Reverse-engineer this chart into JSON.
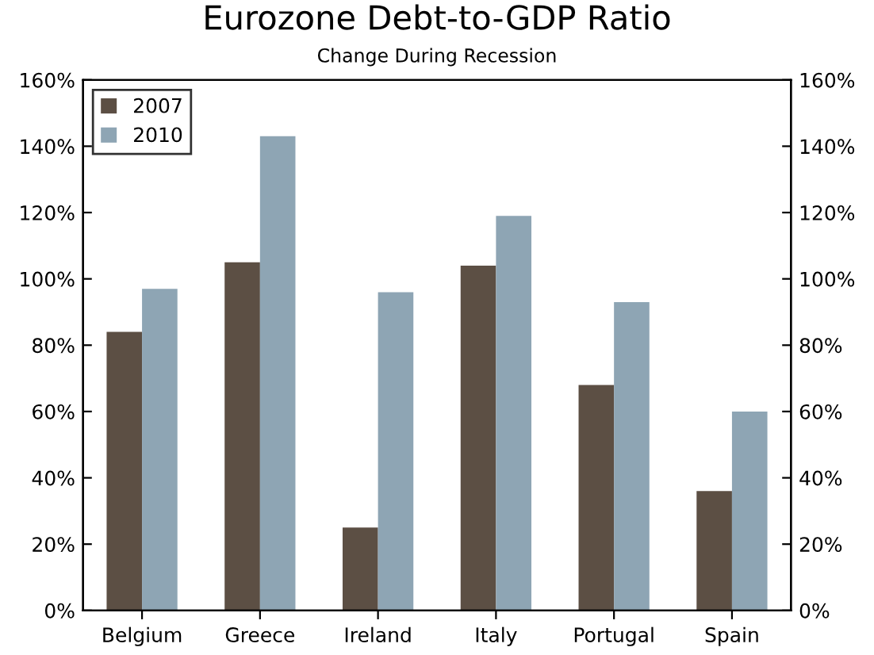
{
  "chart_data": {
    "type": "bar",
    "title": "Eurozone Debt-to-GDP Ratio",
    "subtitle": "Change During Recession",
    "categories": [
      "Belgium",
      "Greece",
      "Ireland",
      "Italy",
      "Portugal",
      "Spain"
    ],
    "series": [
      {
        "name": "2007",
        "color": "#5c4f44",
        "values": [
          84,
          105,
          25,
          104,
          68,
          36
        ]
      },
      {
        "name": "2010",
        "color": "#8ea5b4",
        "values": [
          97,
          143,
          96,
          119,
          93,
          60
        ]
      }
    ],
    "ylim": [
      0,
      160
    ],
    "yticks": [
      {
        "value": 0,
        "label": "0%"
      },
      {
        "value": 20,
        "label": "20%"
      },
      {
        "value": 40,
        "label": "40%"
      },
      {
        "value": 60,
        "label": "60%"
      },
      {
        "value": 80,
        "label": "80%"
      },
      {
        "value": 100,
        "label": "100%"
      },
      {
        "value": 120,
        "label": "120%"
      },
      {
        "value": 140,
        "label": "140%"
      },
      {
        "value": 160,
        "label": "160%"
      }
    ],
    "y2lim": [
      0,
      160
    ],
    "y2ticks": [
      {
        "value": 0,
        "label": "0%"
      },
      {
        "value": 20,
        "label": "20%"
      },
      {
        "value": 40,
        "label": "40%"
      },
      {
        "value": 60,
        "label": "60%"
      },
      {
        "value": 80,
        "label": "80%"
      },
      {
        "value": 100,
        "label": "100%"
      },
      {
        "value": 120,
        "label": "120%"
      },
      {
        "value": 140,
        "label": "140%"
      },
      {
        "value": 160,
        "label": "160%"
      }
    ],
    "grid": false,
    "legend": "top left"
  }
}
